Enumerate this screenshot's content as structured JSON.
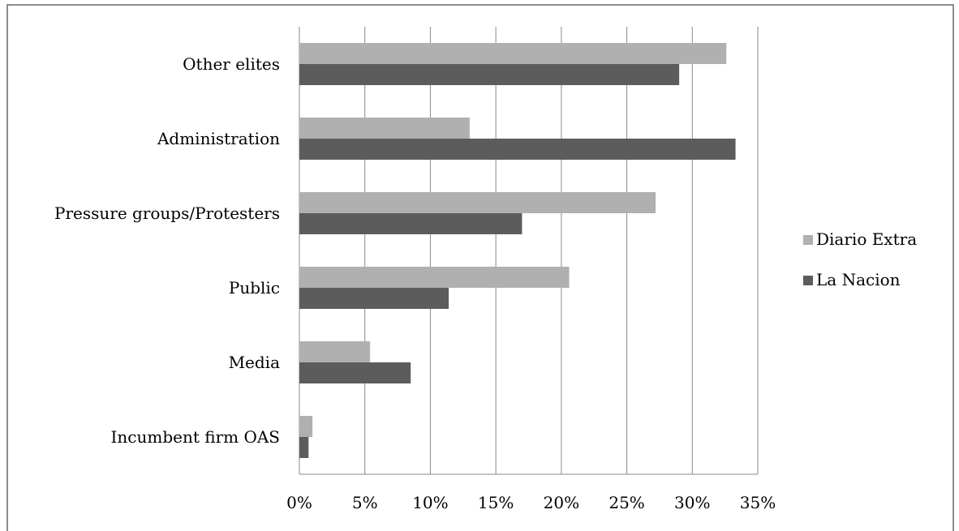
{
  "chart_data": {
    "type": "bar",
    "orientation": "horizontal",
    "title": "",
    "xlabel": "",
    "ylabel": "",
    "categories": [
      "Other elites",
      "Administration",
      "Pressure groups/Protesters",
      "Public",
      "Media",
      "Incumbent firm OAS"
    ],
    "series": [
      {
        "name": "Diario Extra",
        "color": "#b0b0b0",
        "values": [
          32.6,
          13.0,
          27.2,
          20.6,
          5.4,
          1.0
        ]
      },
      {
        "name": "La Nacion",
        "color": "#5c5c5c",
        "values": [
          29.0,
          33.3,
          17.0,
          11.4,
          8.5,
          0.7
        ]
      }
    ],
    "xlim": [
      0,
      35
    ],
    "xticks": [
      "0%",
      "5%",
      "10%",
      "15%",
      "20%",
      "25%",
      "30%",
      "35%"
    ],
    "xtick_values": [
      0,
      5,
      10,
      15,
      20,
      25,
      30,
      35
    ],
    "grid": true,
    "legend_position": "right"
  }
}
